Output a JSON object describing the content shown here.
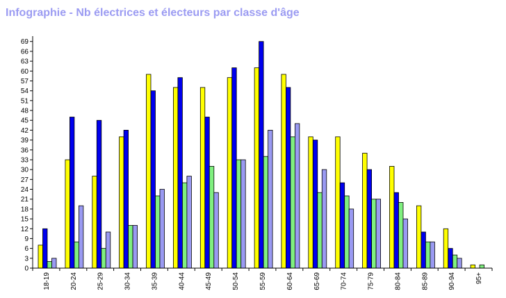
{
  "title": "Infographie - Nb électrices et électeurs par classe d'âge",
  "chart_data": {
    "type": "bar",
    "title": "Infographie - Nb électrices et électeurs par classe d'âge",
    "xlabel": "",
    "ylabel": "",
    "ylim": [
      0,
      70
    ],
    "ytick_step": 3,
    "grid": false,
    "legend": "none",
    "categories": [
      "18-19",
      "20-24",
      "25-29",
      "30-34",
      "35-39",
      "40-44",
      "45-49",
      "50-54",
      "55-59",
      "60-64",
      "65-69",
      "70-74",
      "75-79",
      "80-84",
      "85-89",
      "90-94",
      "95+"
    ],
    "series": [
      {
        "color": "#ffff00",
        "values": [
          7,
          33,
          28,
          40,
          59,
          55,
          55,
          58,
          61,
          59,
          40,
          40,
          35,
          31,
          19,
          12,
          1
        ]
      },
      {
        "color": "#0000ee",
        "values": [
          12,
          46,
          45,
          42,
          54,
          58,
          46,
          61,
          69,
          55,
          39,
          26,
          30,
          23,
          11,
          6,
          0
        ]
      },
      {
        "color": "#80f080",
        "values": [
          2,
          8,
          6,
          13,
          22,
          26,
          31,
          33,
          34,
          40,
          23,
          22,
          21,
          20,
          8,
          4,
          1
        ]
      },
      {
        "color": "#9a9af2",
        "values": [
          3,
          19,
          11,
          13,
          24,
          28,
          23,
          33,
          42,
          44,
          30,
          18,
          21,
          15,
          8,
          3,
          0
        ]
      }
    ]
  }
}
